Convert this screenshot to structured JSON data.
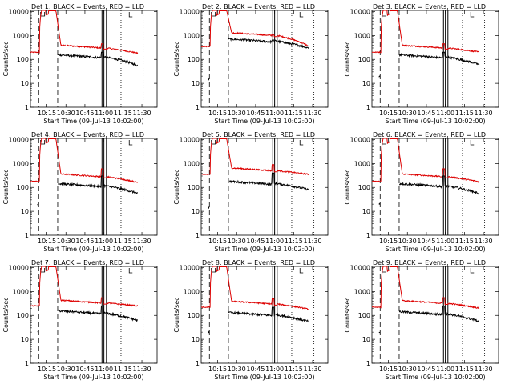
{
  "chart_data": {
    "type": "line",
    "y_scale": "log",
    "ylim": [
      1,
      10000
    ],
    "ylabel": "Counts/sec",
    "yticks": [
      {
        "value": 1,
        "label": "1"
      },
      {
        "value": 10,
        "label": "10"
      },
      {
        "value": 100,
        "label": "100"
      },
      {
        "value": 1000,
        "label": "1000"
      },
      {
        "value": 10000,
        "label": "10000"
      }
    ],
    "xlim": [
      "10:02",
      "11:42"
    ],
    "xlabel": "Start Time (09-Jul-13 10:02:00)",
    "xticks": [
      "10:15",
      "10:30",
      "10:45",
      "11:00",
      "11:15",
      "11:30"
    ],
    "xtick_minutes": [
      13,
      28,
      43,
      58,
      73,
      88
    ],
    "series_names": [
      "Events",
      "LLD"
    ],
    "colors": {
      "events": "#000000",
      "lld": "#dd0000"
    },
    "dashed_vlines_min": [
      6.5,
      21.5
    ],
    "solid_vlines_min": [
      56.5,
      58.0,
      60.0
    ],
    "dotted_vlines_min": [
      71.5,
      89.0
    ],
    "panels": [
      {
        "title": "Det 1: BLACK = Events, RED = LLD",
        "red": {
          "base": 200,
          "peak": 12000,
          "tail": 300,
          "end": 180,
          "spike": 450
        },
        "black": {
          "base": 20,
          "peak": 4000,
          "tail": 130,
          "end": 55,
          "spike": 200
        }
      },
      {
        "title": "Det 2: BLACK = Events, RED = LLD",
        "red": {
          "base": 350,
          "peak": 12000,
          "tail": 1000,
          "end": 350,
          "spike": 1100
        },
        "black": {
          "base": 15,
          "peak": 4000,
          "tail": 600,
          "end": 300,
          "spike": 650
        }
      },
      {
        "title": "Det 3: BLACK = Events, RED = LLD",
        "red": {
          "base": 200,
          "peak": 12000,
          "tail": 300,
          "end": 200,
          "spike": 450
        },
        "black": {
          "base": 20,
          "peak": 4000,
          "tail": 130,
          "end": 60,
          "spike": 200
        }
      },
      {
        "title": "Det 4: BLACK = Events, RED = LLD",
        "red": {
          "base": 180,
          "peak": 12000,
          "tail": 280,
          "end": 160,
          "spike": 600
        },
        "black": {
          "base": 20,
          "peak": 4000,
          "tail": 120,
          "end": 55,
          "spike": 300
        }
      },
      {
        "title": "Det 5: BLACK = Events, RED = LLD",
        "red": {
          "base": 350,
          "peak": 12000,
          "tail": 500,
          "end": 350,
          "spike": 900
        },
        "black": {
          "base": 15,
          "peak": 4000,
          "tail": 150,
          "end": 80,
          "spike": 400
        }
      },
      {
        "title": "Det 6: BLACK = Events, RED = LLD",
        "red": {
          "base": 180,
          "peak": 12000,
          "tail": 280,
          "end": 170,
          "spike": 600
        },
        "black": {
          "base": 20,
          "peak": 4000,
          "tail": 120,
          "end": 55,
          "spike": 300
        }
      },
      {
        "title": "Det 7: BLACK = Events, RED = LLD",
        "red": {
          "base": 250,
          "peak": 12000,
          "tail": 330,
          "end": 250,
          "spike": 550
        },
        "black": {
          "base": 20,
          "peak": 4000,
          "tail": 130,
          "end": 60,
          "spike": 250
        }
      },
      {
        "title": "Det 8: BLACK = Events, RED = LLD",
        "red": {
          "base": 220,
          "peak": 12000,
          "tail": 300,
          "end": 180,
          "spike": 500
        },
        "black": {
          "base": 20,
          "peak": 4000,
          "tail": 110,
          "end": 55,
          "spike": 220
        }
      },
      {
        "title": "Det 9: BLACK = Events, RED = LLD",
        "red": {
          "base": 220,
          "peak": 12000,
          "tail": 320,
          "end": 200,
          "spike": 550
        },
        "black": {
          "base": 20,
          "peak": 4000,
          "tail": 120,
          "end": 55,
          "spike": 250
        }
      }
    ]
  }
}
